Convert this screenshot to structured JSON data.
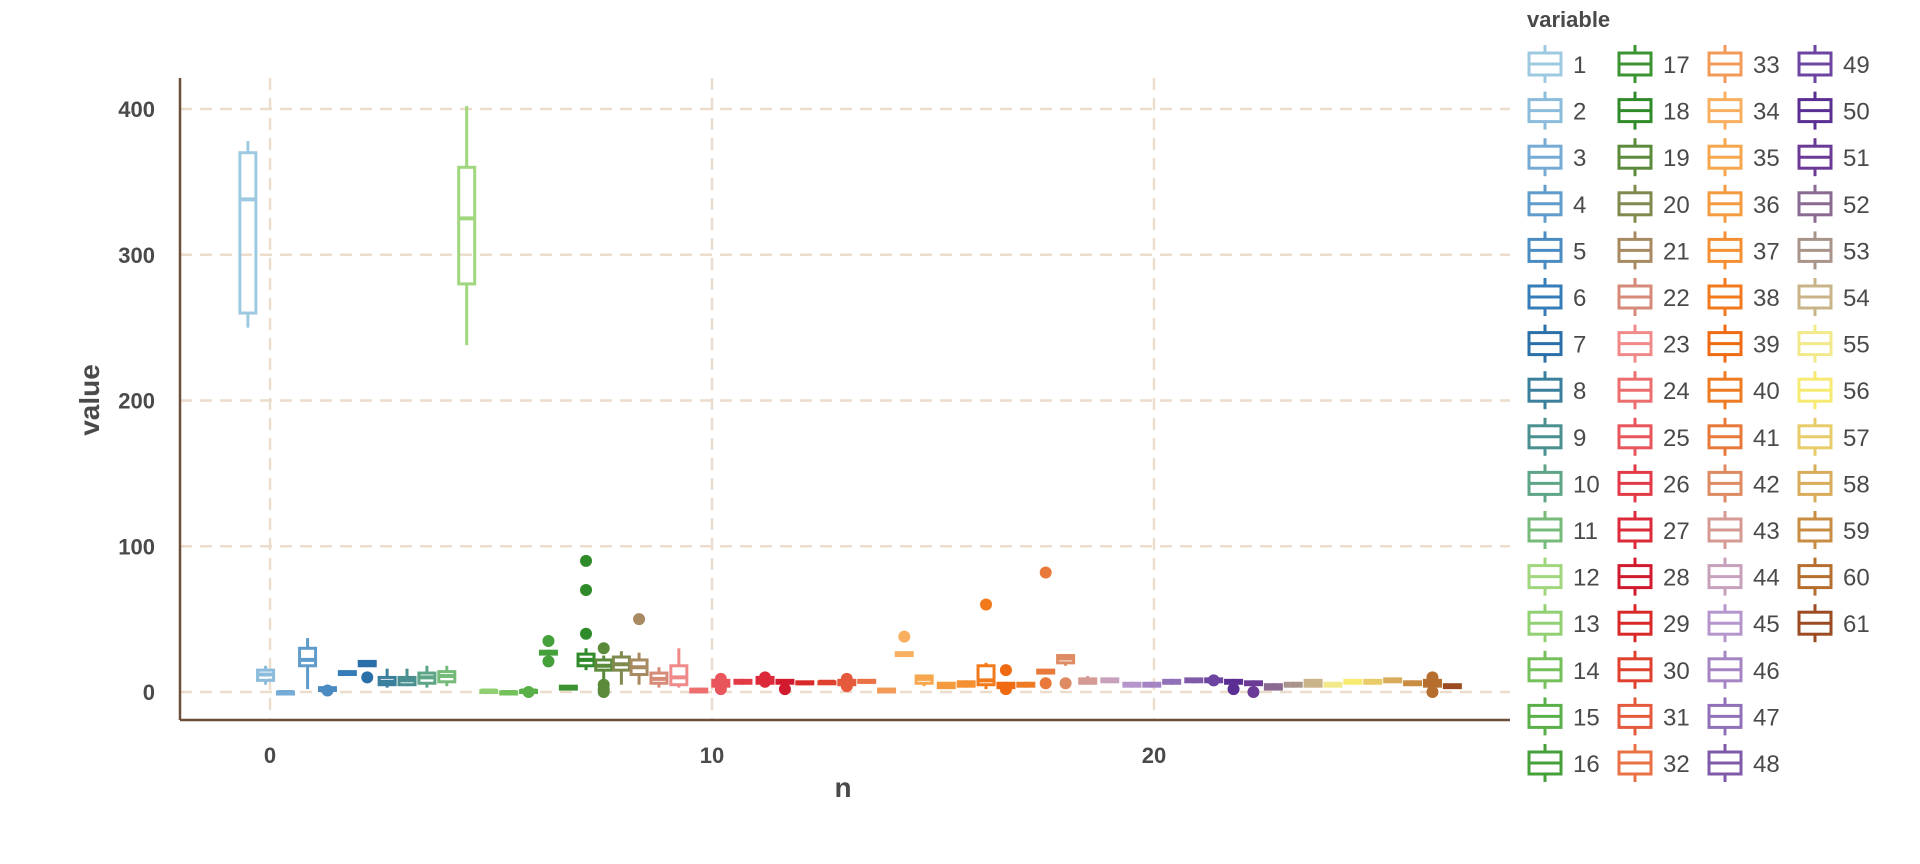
{
  "chart_data": {
    "type": "box",
    "xlabel": "n",
    "ylabel": "value",
    "xlim": [
      -2,
      28
    ],
    "ylim": [
      -20,
      420
    ],
    "x_ticks": [
      0,
      10,
      20
    ],
    "y_ticks": [
      0,
      100,
      200,
      300,
      400
    ],
    "grid": true,
    "legend_position": "right",
    "legend_title": "variable",
    "series": [
      {
        "name": "1",
        "color": "#9ecae1",
        "x": -0.5,
        "min": 250,
        "q1": 260,
        "median": 338,
        "q3": 370,
        "max": 378,
        "outliers": []
      },
      {
        "name": "2",
        "color": "#8bbcdc",
        "x": -0.1,
        "min": 5,
        "q1": 8,
        "median": 12,
        "q3": 15,
        "max": 18,
        "outliers": []
      },
      {
        "name": "3",
        "color": "#75abd4",
        "x": 0.35,
        "min": -1,
        "q1": -1,
        "median": 0,
        "q3": 0,
        "max": 0.5,
        "outliers": []
      },
      {
        "name": "4",
        "color": "#5f9ccb",
        "x": 0.85,
        "min": 2,
        "q1": 18,
        "median": 22,
        "q3": 30,
        "max": 37,
        "outliers": []
      },
      {
        "name": "5",
        "color": "#4a8cc2",
        "x": 1.3,
        "min": 1,
        "q1": 1,
        "median": 2,
        "q3": 3,
        "max": 3,
        "outliers": [
          1
        ]
      },
      {
        "name": "6",
        "color": "#357db8",
        "x": 1.75,
        "min": 11,
        "q1": 12,
        "median": 13,
        "q3": 14,
        "max": 14,
        "outliers": []
      },
      {
        "name": "7",
        "color": "#2b6fa8",
        "x": 2.2,
        "min": 18,
        "q1": 18,
        "median": 19,
        "q3": 21,
        "max": 21,
        "outliers": [
          10
        ]
      },
      {
        "name": "8",
        "color": "#3a7f9c",
        "x": 2.65,
        "min": 3,
        "q1": 5,
        "median": 7,
        "q3": 10,
        "max": 16,
        "outliers": []
      },
      {
        "name": "9",
        "color": "#4a9090",
        "x": 3.1,
        "min": 4,
        "q1": 5,
        "median": 8,
        "q3": 10,
        "max": 16,
        "outliers": []
      },
      {
        "name": "10",
        "color": "#5ea486",
        "x": 3.55,
        "min": 3,
        "q1": 6,
        "median": 10,
        "q3": 13,
        "max": 18,
        "outliers": []
      },
      {
        "name": "11",
        "color": "#76bb7a",
        "x": 4.0,
        "min": 4,
        "q1": 7,
        "median": 11,
        "q3": 14,
        "max": 18,
        "outliers": []
      },
      {
        "name": "12",
        "color": "#a0d67d",
        "x": 4.45,
        "min": 238,
        "q1": 280,
        "median": 325,
        "q3": 360,
        "max": 402,
        "outliers": []
      },
      {
        "name": "13",
        "color": "#90d072",
        "x": 4.95,
        "min": 0,
        "q1": 0,
        "median": 1,
        "q3": 1,
        "max": 2,
        "outliers": []
      },
      {
        "name": "14",
        "color": "#74c05b",
        "x": 5.4,
        "min": -1,
        "q1": -1,
        "median": 0,
        "q3": 0,
        "max": 1,
        "outliers": []
      },
      {
        "name": "15",
        "color": "#5ab048",
        "x": 5.85,
        "min": -1,
        "q1": 0,
        "median": 1,
        "q3": 1,
        "max": 2,
        "outliers": [
          0
        ]
      },
      {
        "name": "16",
        "color": "#45a03a",
        "x": 6.3,
        "min": 22,
        "q1": 26,
        "median": 27,
        "q3": 28,
        "max": 29,
        "outliers": [
          35,
          21
        ]
      },
      {
        "name": "17",
        "color": "#3b9331",
        "x": 6.75,
        "min": 2,
        "q1": 2,
        "median": 3,
        "q3": 4,
        "max": 4,
        "outliers": []
      },
      {
        "name": "18",
        "color": "#2f8a2a",
        "x": 7.15,
        "min": 15,
        "q1": 18,
        "median": 22,
        "q3": 26,
        "max": 30,
        "outliers": [
          90,
          70,
          40
        ]
      },
      {
        "name": "19",
        "color": "#5a8a3a",
        "x": 7.55,
        "min": 8,
        "q1": 15,
        "median": 18,
        "q3": 22,
        "max": 25,
        "outliers": [
          30,
          5,
          2,
          0
        ]
      },
      {
        "name": "20",
        "color": "#7f8a4e",
        "x": 7.95,
        "min": 5,
        "q1": 15,
        "median": 19,
        "q3": 24,
        "max": 28,
        "outliers": []
      },
      {
        "name": "21",
        "color": "#a88a62",
        "x": 8.35,
        "min": 5,
        "q1": 12,
        "median": 17,
        "q3": 22,
        "max": 27,
        "outliers": [
          50
        ]
      },
      {
        "name": "22",
        "color": "#d68a78",
        "x": 8.8,
        "min": 3,
        "q1": 6,
        "median": 9,
        "q3": 13,
        "max": 17,
        "outliers": []
      },
      {
        "name": "23",
        "color": "#f08a8a",
        "x": 9.25,
        "min": 3,
        "q1": 5,
        "median": 10,
        "q3": 18,
        "max": 30,
        "outliers": []
      },
      {
        "name": "24",
        "color": "#ec6e6e",
        "x": 9.7,
        "min": 0,
        "q1": 0,
        "median": 1,
        "q3": 2,
        "max": 3,
        "outliers": []
      },
      {
        "name": "25",
        "color": "#e8555a",
        "x": 10.2,
        "min": 2,
        "q1": 4,
        "median": 6,
        "q3": 8,
        "max": 10,
        "outliers": [
          9,
          4,
          2
        ]
      },
      {
        "name": "26",
        "color": "#e33a48",
        "x": 10.7,
        "min": 5,
        "q1": 6,
        "median": 7,
        "q3": 8,
        "max": 9,
        "outliers": []
      },
      {
        "name": "27",
        "color": "#dd2a3a",
        "x": 11.2,
        "min": 5,
        "q1": 6,
        "median": 8,
        "q3": 10,
        "max": 11,
        "outliers": [
          10,
          7
        ]
      },
      {
        "name": "28",
        "color": "#d11a2e",
        "x": 11.65,
        "min": 6,
        "q1": 6,
        "median": 7,
        "q3": 8,
        "max": 8,
        "outliers": [
          2
        ]
      },
      {
        "name": "29",
        "color": "#d82828",
        "x": 12.1,
        "min": 5,
        "q1": 6,
        "median": 6,
        "q3": 7,
        "max": 7,
        "outliers": []
      },
      {
        "name": "30",
        "color": "#e0402e",
        "x": 12.6,
        "min": 6,
        "q1": 6,
        "median": 7,
        "q3": 7,
        "max": 8,
        "outliers": []
      },
      {
        "name": "31",
        "color": "#e55a3c",
        "x": 13.05,
        "min": 3,
        "q1": 5,
        "median": 6,
        "q3": 8,
        "max": 10,
        "outliers": [
          9,
          4
        ]
      },
      {
        "name": "32",
        "color": "#ea7045",
        "x": 13.5,
        "min": 6,
        "q1": 7,
        "median": 7,
        "q3": 8,
        "max": 8,
        "outliers": []
      },
      {
        "name": "33",
        "color": "#f29a58",
        "x": 13.95,
        "min": 0,
        "q1": 0,
        "median": 1,
        "q3": 2,
        "max": 3,
        "outliers": []
      },
      {
        "name": "34",
        "color": "#f8b060",
        "x": 14.35,
        "min": 24,
        "q1": 25,
        "median": 26,
        "q3": 27,
        "max": 28,
        "outliers": [
          38
        ]
      },
      {
        "name": "35",
        "color": "#f6a64c",
        "x": 14.8,
        "min": 4,
        "q1": 6,
        "median": 9,
        "q3": 11,
        "max": 12,
        "outliers": []
      },
      {
        "name": "36",
        "color": "#f59b3f",
        "x": 15.3,
        "min": 2,
        "q1": 3,
        "median": 5,
        "q3": 6,
        "max": 7,
        "outliers": []
      },
      {
        "name": "37",
        "color": "#f58f33",
        "x": 15.75,
        "min": 3,
        "q1": 4,
        "median": 5,
        "q3": 7,
        "max": 8,
        "outliers": []
      },
      {
        "name": "38",
        "color": "#f27a1c",
        "x": 16.2,
        "min": 2,
        "q1": 5,
        "median": 8,
        "q3": 18,
        "max": 20,
        "outliers": [
          60
        ]
      },
      {
        "name": "39",
        "color": "#f06a12",
        "x": 16.65,
        "min": 2,
        "q1": 3,
        "median": 4,
        "q3": 6,
        "max": 7,
        "outliers": [
          15,
          2
        ]
      },
      {
        "name": "40",
        "color": "#ee7a22",
        "x": 17.1,
        "min": 3,
        "q1": 4,
        "median": 5,
        "q3": 6,
        "max": 7,
        "outliers": []
      },
      {
        "name": "41",
        "color": "#e8793a",
        "x": 17.55,
        "min": 12,
        "q1": 13,
        "median": 14,
        "q3": 15,
        "max": 16,
        "outliers": [
          82,
          6
        ]
      },
      {
        "name": "42",
        "color": "#de8a62",
        "x": 18.0,
        "min": 18,
        "q1": 20,
        "median": 23,
        "q3": 25,
        "max": 26,
        "outliers": [
          6
        ]
      },
      {
        "name": "43",
        "color": "#d69a94",
        "x": 18.5,
        "min": 5,
        "q1": 6,
        "median": 8,
        "q3": 9,
        "max": 11,
        "outliers": []
      },
      {
        "name": "44",
        "color": "#c7a0bc",
        "x": 19.0,
        "min": 6,
        "q1": 7,
        "median": 8,
        "q3": 9,
        "max": 10,
        "outliers": []
      },
      {
        "name": "45",
        "color": "#b596cc",
        "x": 19.5,
        "min": 3,
        "q1": 4,
        "median": 5,
        "q3": 6,
        "max": 7,
        "outliers": []
      },
      {
        "name": "46",
        "color": "#a584c4",
        "x": 19.95,
        "min": 3,
        "q1": 4,
        "median": 5,
        "q3": 6,
        "max": 7,
        "outliers": []
      },
      {
        "name": "47",
        "color": "#9070b8",
        "x": 20.4,
        "min": 5,
        "q1": 6,
        "median": 7,
        "q3": 8,
        "max": 9,
        "outliers": []
      },
      {
        "name": "48",
        "color": "#7e5aa8",
        "x": 20.9,
        "min": 6,
        "q1": 7,
        "median": 8,
        "q3": 9,
        "max": 9,
        "outliers": []
      },
      {
        "name": "49",
        "color": "#6d44a0",
        "x": 21.35,
        "min": 6,
        "q1": 7,
        "median": 8,
        "q3": 9,
        "max": 11,
        "outliers": [
          8
        ]
      },
      {
        "name": "50",
        "color": "#5a2e92",
        "x": 21.8,
        "min": 5,
        "q1": 6,
        "median": 7,
        "q3": 8,
        "max": 9,
        "outliers": [
          2
        ]
      },
      {
        "name": "51",
        "color": "#6b3a96",
        "x": 22.25,
        "min": 4,
        "q1": 5,
        "median": 6,
        "q3": 7,
        "max": 8,
        "outliers": [
          0
        ]
      },
      {
        "name": "52",
        "color": "#8a6a90",
        "x": 22.7,
        "min": 1,
        "q1": 2,
        "median": 4,
        "q3": 5,
        "max": 6,
        "outliers": []
      },
      {
        "name": "53",
        "color": "#a8948a",
        "x": 23.15,
        "min": 3,
        "q1": 4,
        "median": 5,
        "q3": 6,
        "max": 7,
        "outliers": []
      },
      {
        "name": "54",
        "color": "#c9b48a",
        "x": 23.6,
        "min": 3,
        "q1": 4,
        "median": 6,
        "q3": 8,
        "max": 9,
        "outliers": []
      },
      {
        "name": "55",
        "color": "#f2ea8a",
        "x": 24.05,
        "min": 3,
        "q1": 4,
        "median": 5,
        "q3": 6,
        "max": 7,
        "outliers": []
      },
      {
        "name": "56",
        "color": "#f7ea70",
        "x": 24.5,
        "min": 5,
        "q1": 6,
        "median": 7,
        "q3": 8,
        "max": 9,
        "outliers": []
      },
      {
        "name": "57",
        "color": "#e8cc6a",
        "x": 24.95,
        "min": 5,
        "q1": 6,
        "median": 7,
        "q3": 8,
        "max": 9,
        "outliers": []
      },
      {
        "name": "58",
        "color": "#d8ac5a",
        "x": 25.4,
        "min": 6,
        "q1": 7,
        "median": 8,
        "q3": 9,
        "max": 10,
        "outliers": []
      },
      {
        "name": "59",
        "color": "#c88c42",
        "x": 25.85,
        "min": 4,
        "q1": 5,
        "median": 6,
        "q3": 7,
        "max": 8,
        "outliers": []
      },
      {
        "name": "60",
        "color": "#b66e2e",
        "x": 26.3,
        "min": 2,
        "q1": 4,
        "median": 6,
        "q3": 8,
        "max": 10,
        "outliers": [
          10,
          0
        ]
      },
      {
        "name": "61",
        "color": "#9c4a22",
        "x": 26.75,
        "min": 3,
        "q1": 3,
        "median": 4,
        "q3": 5,
        "max": 5,
        "outliers": []
      }
    ]
  }
}
